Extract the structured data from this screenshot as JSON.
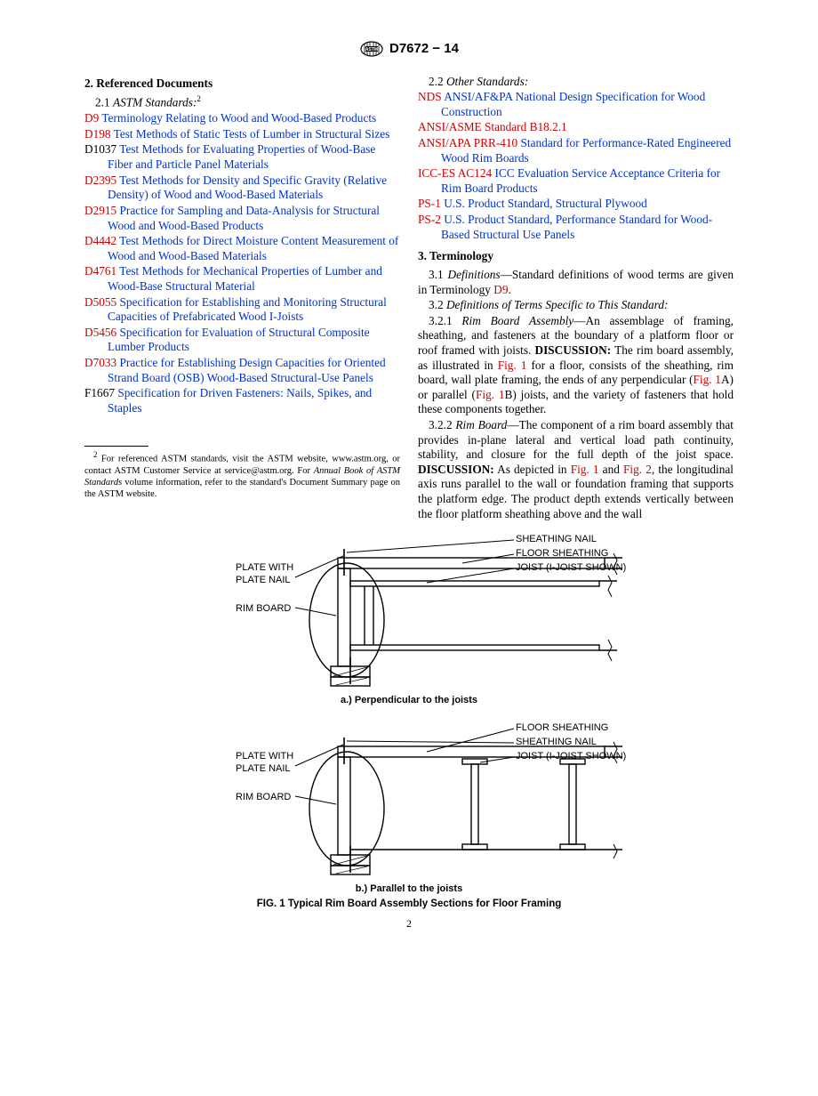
{
  "header": {
    "docnum": "D7672 − 14"
  },
  "left": {
    "h2": "2.  Referenced Documents",
    "sub1_pre": "2.1 ",
    "sub1_ital": "ASTM Standards:",
    "refs": [
      {
        "code": "D9",
        "codeClass": "code-red",
        "title": "Terminology Relating to Wood and Wood-Based Products"
      },
      {
        "code": "D198",
        "codeClass": "code-red",
        "title": "Test Methods of Static Tests of Lumber in Structural Sizes"
      },
      {
        "code": "D1037",
        "codeClass": "code-black",
        "title": "Test Methods for Evaluating Properties of Wood-Base Fiber and Particle Panel Materials"
      },
      {
        "code": "D2395",
        "codeClass": "code-red",
        "title": "Test Methods for Density and Specific Gravity (Relative Density) of Wood and Wood-Based Materials"
      },
      {
        "code": "D2915",
        "codeClass": "code-red",
        "title": "Practice for Sampling and Data-Analysis for Structural Wood and Wood-Based Products"
      },
      {
        "code": "D4442",
        "codeClass": "code-red",
        "title": "Test Methods for Direct Moisture Content Measurement of Wood and Wood-Based Materials"
      },
      {
        "code": "D4761",
        "codeClass": "code-red",
        "title": "Test Methods for Mechanical Properties of Lumber and Wood-Base Structural Material"
      },
      {
        "code": "D5055",
        "codeClass": "code-red",
        "title": "Specification for Establishing and Monitoring Structural Capacities of Prefabricated Wood I-Joists"
      },
      {
        "code": "D5456",
        "codeClass": "code-red",
        "title": "Specification for Evaluation of Structural Composite Lumber Products"
      },
      {
        "code": "D7033",
        "codeClass": "code-red",
        "title": "Practice for Establishing Design Capacities for Oriented Strand Board (OSB) Wood-Based Structural-Use Panels"
      },
      {
        "code": "F1667",
        "codeClass": "code-black",
        "title": "Specification for Driven Fasteners: Nails, Spikes, and Staples"
      }
    ],
    "footnote": "For referenced ASTM standards, visit the ASTM website, www.astm.org, or contact ASTM Customer Service at service@astm.org. For ",
    "footnote_ital": "Annual Book of ASTM Standards",
    "footnote_tail": " volume information, refer to the standard's Document Summary page on the ASTM website.",
    "footnote_sup": "2"
  },
  "right": {
    "sub22_pre": "2.2 ",
    "sub22_ital": "Other Standards:",
    "refs": [
      {
        "code": "NDS",
        "title": "ANSI/AF&PA National Design Specification for Wood Construction"
      },
      {
        "code": "ANSI/ASME Standard B18.2.1",
        "title": ""
      },
      {
        "code": "ANSI/APA PRR-410",
        "title": "Standard for Performance-Rated Engineered Wood Rim Boards"
      },
      {
        "code": "ICC-ES AC124",
        "title": "ICC Evaluation Service Acceptance Criteria for Rim Board Products"
      },
      {
        "code": "PS-1",
        "title": "U.S. Product Standard, Structural Plywood"
      },
      {
        "code": "PS-2",
        "title": "U.S. Product Standard, Performance Standard for Wood-Based Structural Use Panels"
      }
    ],
    "h3": "3.  Terminology",
    "p31_pre": "3.1 ",
    "p31_ital": "Definitions",
    "p31_dash": "—Standard definitions of wood terms are given in Terminology ",
    "p31_ref": "D9",
    "p31_tail": ".",
    "p32_pre": "3.2 ",
    "p32_ital": "Definitions of Terms Specific to This Standard:",
    "p321_pre": "3.2.1 ",
    "p321_ital": "Rim Board Assembly",
    "p321_body1": "—An assemblage of framing, sheathing, and fasteners at the boundary of a platform floor or roof framed with joists. ",
    "p321_disc": "DISCUSSION:",
    "p321_body2": " The rim board assembly, as illustrated in ",
    "p321_fig1": "Fig. 1",
    "p321_body3": " for a floor, consists of the sheathing, rim board, wall plate framing, the ends of any perpendicular (",
    "p321_fig1a": "Fig. 1",
    "p321_body4": "A) or parallel (",
    "p321_fig1b": "Fig. 1",
    "p321_body5": "B) joists, and the variety of fasteners that hold these components together.",
    "p322_pre": "3.2.2 ",
    "p322_ital": "Rim Board",
    "p322_body1": "—The component of a rim board assembly that provides in-plane lateral and vertical load path continuity, stability, and closure for the full depth of the joist space. ",
    "p322_disc": "DISCUSSION:",
    "p322_body2": " As depicted in ",
    "p322_fig1": "Fig. 1",
    "p322_body3": " and ",
    "p322_fig2": "Fig. 2",
    "p322_body4": ", the longitudinal axis runs parallel to the wall or foundation framing that supports the platform edge. The product depth extends vertically between the floor platform sheathing above and the wall"
  },
  "figure": {
    "diagA": {
      "left_labels": {
        "plate": "PLATE WITH\nPLATE NAIL",
        "rim": "RIM BOARD"
      },
      "right_labels": {
        "sheathnail": "SHEATHING NAIL",
        "floorsheath": "FLOOR SHEATHING",
        "joist": "JOIST (I-JOIST SHOWN)"
      },
      "sublabel": "a.) Perpendicular to the joists"
    },
    "diagB": {
      "left_labels": {
        "plate": "PLATE WITH\nPLATE NAIL",
        "rim": "RIM BOARD"
      },
      "right_labels": {
        "floorsheath": "FLOOR SHEATHING",
        "sheathnail": "SHEATHING NAIL",
        "joist": "JOIST (I-JOIST SHOWN)"
      },
      "sublabel": "b.) Parallel to the joists"
    },
    "caption": "FIG. 1 Typical Rim Board Assembly Sections for Floor Framing"
  },
  "pagenum": "2"
}
